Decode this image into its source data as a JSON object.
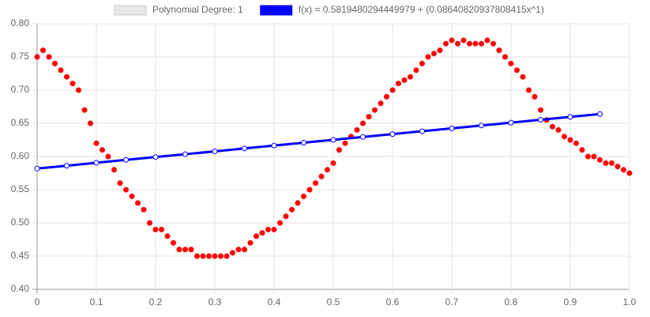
{
  "chart_data": {
    "type": "scatter",
    "series": [
      {
        "name": "Polynomial Degree: 1",
        "color": "#ff0000",
        "legend_color": "#e6e6e6",
        "style": "points",
        "x": [
          0,
          0.01,
          0.02,
          0.03,
          0.04,
          0.05,
          0.06,
          0.07,
          0.08,
          0.09,
          0.1,
          0.11,
          0.12,
          0.13,
          0.14,
          0.15,
          0.16,
          0.17,
          0.18,
          0.19,
          0.2,
          0.21,
          0.22,
          0.23,
          0.24,
          0.25,
          0.26,
          0.27,
          0.28,
          0.29,
          0.3,
          0.31,
          0.32,
          0.33,
          0.34,
          0.35,
          0.36,
          0.37,
          0.38,
          0.39,
          0.4,
          0.41,
          0.42,
          0.43,
          0.44,
          0.45,
          0.46,
          0.47,
          0.48,
          0.49,
          0.5,
          0.51,
          0.52,
          0.53,
          0.54,
          0.55,
          0.56,
          0.57,
          0.58,
          0.59,
          0.6,
          0.61,
          0.62,
          0.63,
          0.64,
          0.65,
          0.66,
          0.67,
          0.68,
          0.69,
          0.7,
          0.71,
          0.72,
          0.73,
          0.74,
          0.75,
          0.76,
          0.77,
          0.78,
          0.79,
          0.8,
          0.81,
          0.82,
          0.83,
          0.84,
          0.85,
          0.86,
          0.87,
          0.88,
          0.89,
          0.9,
          0.91,
          0.92,
          0.93,
          0.94,
          0.95,
          0.96,
          0.97,
          0.98,
          0.99,
          1
        ],
        "values": [
          0.75,
          0.76,
          0.75,
          0.74,
          0.73,
          0.72,
          0.71,
          0.7,
          0.67,
          0.65,
          0.62,
          0.61,
          0.6,
          0.58,
          0.56,
          0.55,
          0.54,
          0.53,
          0.52,
          0.5,
          0.49,
          0.49,
          0.48,
          0.47,
          0.46,
          0.46,
          0.46,
          0.45,
          0.45,
          0.45,
          0.45,
          0.45,
          0.45,
          0.455,
          0.46,
          0.46,
          0.47,
          0.48,
          0.485,
          0.49,
          0.49,
          0.5,
          0.51,
          0.52,
          0.53,
          0.54,
          0.55,
          0.56,
          0.57,
          0.58,
          0.59,
          0.61,
          0.62,
          0.63,
          0.64,
          0.65,
          0.66,
          0.67,
          0.68,
          0.69,
          0.7,
          0.71,
          0.715,
          0.72,
          0.73,
          0.74,
          0.75,
          0.755,
          0.76,
          0.77,
          0.775,
          0.77,
          0.775,
          0.77,
          0.77,
          0.77,
          0.775,
          0.77,
          0.76,
          0.75,
          0.74,
          0.73,
          0.72,
          0.7,
          0.69,
          0.67,
          0.655,
          0.645,
          0.64,
          0.63,
          0.625,
          0.62,
          0.61,
          0.6,
          0.6,
          0.595,
          0.59,
          0.59,
          0.585,
          0.58,
          0.575
        ]
      },
      {
        "name": "f(x) = 0.5819480294449979 + (0.08640820937808415x^1)",
        "color": "#0000ff",
        "style": "line",
        "x": [
          0,
          0.05,
          0.1,
          0.15,
          0.2,
          0.25,
          0.3,
          0.35,
          0.4,
          0.45,
          0.5,
          0.55,
          0.6,
          0.65,
          0.7,
          0.75,
          0.8,
          0.85,
          0.9,
          0.95
        ],
        "values": [
          0.5819,
          0.5862,
          0.5906,
          0.5949,
          0.5992,
          0.6035,
          0.6078,
          0.6122,
          0.6165,
          0.6208,
          0.6251,
          0.6294,
          0.6338,
          0.6381,
          0.6424,
          0.6467,
          0.651,
          0.6554,
          0.6597,
          0.664
        ]
      }
    ],
    "xlim": [
      0,
      1
    ],
    "xticks": [
      0,
      0.1,
      0.2,
      0.3,
      0.4,
      0.5,
      0.6,
      0.7,
      0.8,
      0.9,
      {
        "value": 1,
        "label": "1.0"
      }
    ],
    "ylim": [
      0.4,
      0.8
    ],
    "yticks": [
      {
        "value": 0.4,
        "label": "0.40"
      },
      {
        "value": 0.45,
        "label": "0.45"
      },
      {
        "value": 0.5,
        "label": "0.50"
      },
      {
        "value": 0.55,
        "label": "0.55"
      },
      {
        "value": 0.6,
        "label": "0.60"
      },
      {
        "value": 0.65,
        "label": "0.65"
      },
      {
        "value": 0.7,
        "label": "0.70"
      },
      {
        "value": 0.75,
        "label": "0.75"
      },
      {
        "value": 0.8,
        "label": "0.80"
      }
    ],
    "grid": true
  }
}
